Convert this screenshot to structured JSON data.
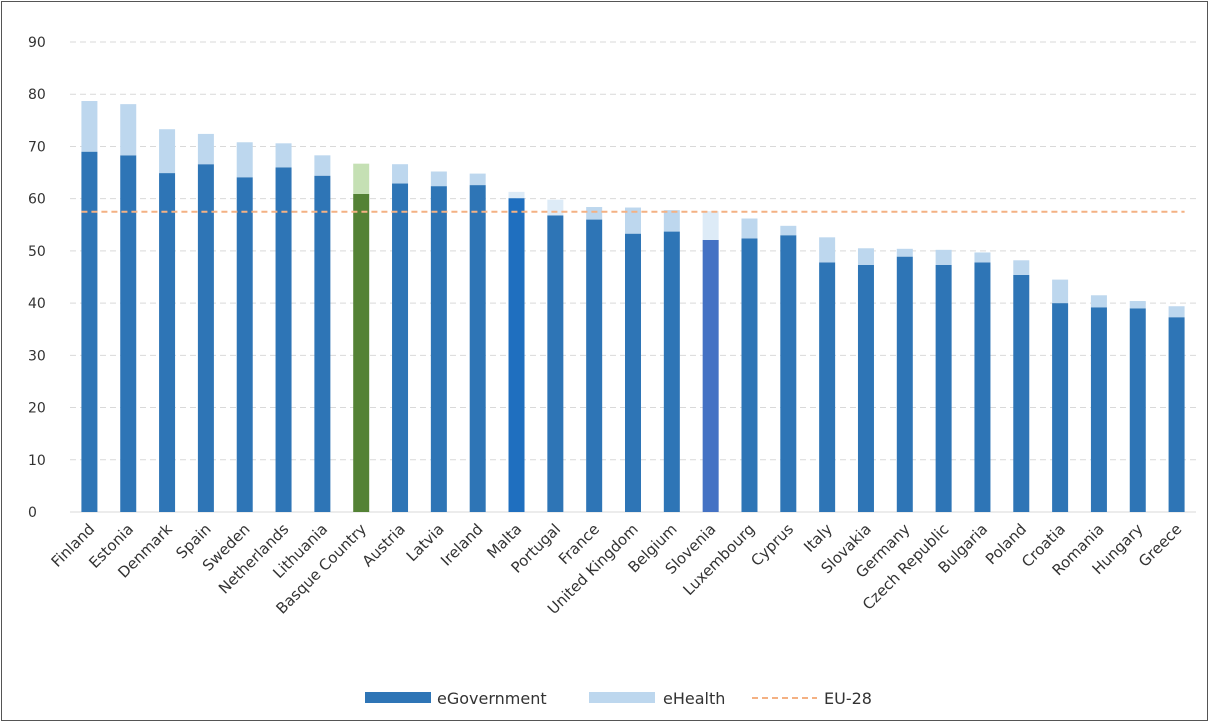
{
  "chart_data": {
    "type": "bar",
    "stacked": true,
    "title": "",
    "xlabel": "",
    "ylabel": "",
    "ylim": [
      0,
      90
    ],
    "yticks": [
      0,
      10,
      20,
      30,
      40,
      50,
      60,
      70,
      80,
      90
    ],
    "grid": true,
    "legend_position": "bottom",
    "categories": [
      "Finland",
      "Estonia",
      "Denmark",
      "Spain",
      "Sweden",
      "Netherlands",
      "Lithuania",
      "Basque Country",
      "Austria",
      "Latvia",
      "Ireland",
      "Malta",
      "Portugal",
      "France",
      "United Kingdom",
      "Belgium",
      "Slovenia",
      "Luxembourg",
      "Cyprus",
      "Italy",
      "Slovakia",
      "Germany",
      "Czech Republic",
      "Bulgaria",
      "Poland",
      "Croatia",
      "Romania",
      "Hungary",
      "Greece"
    ],
    "series": [
      {
        "name": "eGovernment",
        "color": "#2E75B6",
        "values": [
          69.0,
          68.3,
          64.9,
          66.6,
          64.1,
          66.0,
          64.4,
          60.9,
          62.9,
          62.4,
          62.6,
          60.1,
          56.8,
          56.0,
          53.3,
          53.7,
          52.1,
          52.4,
          53.0,
          47.8,
          47.3,
          48.9,
          47.3,
          47.8,
          45.4,
          40.0,
          39.2,
          39.0,
          37.3
        ]
      },
      {
        "name": "eHealth",
        "color": "#BDD7EE",
        "values": [
          9.7,
          9.8,
          8.4,
          5.8,
          6.7,
          4.6,
          3.9,
          5.8,
          3.7,
          2.8,
          2.2,
          1.2,
          3.0,
          2.4,
          5.0,
          4.1,
          5.5,
          3.8,
          1.8,
          4.8,
          3.2,
          1.5,
          2.9,
          1.9,
          2.8,
          4.5,
          2.3,
          1.4,
          2.1
        ]
      }
    ],
    "reference_line": {
      "name": "EU-28",
      "value": 57.5,
      "color": "#F4B183"
    },
    "highlight_colors": {
      "Basque Country": {
        "base": "#548235",
        "top": "#C5E0B4"
      },
      "Malta": {
        "base": "#1F6FBF",
        "top": "#DDEBF7"
      },
      "Portugal": {
        "base": "#2E75B6",
        "top": "#DDEBF7"
      },
      "Slovenia": {
        "base": "#4472C4",
        "top": "#DDEBF7"
      }
    }
  },
  "legend": {
    "egov_label": "eGovernment",
    "ehealth_label": "eHealth",
    "eu_label": "EU-28"
  }
}
